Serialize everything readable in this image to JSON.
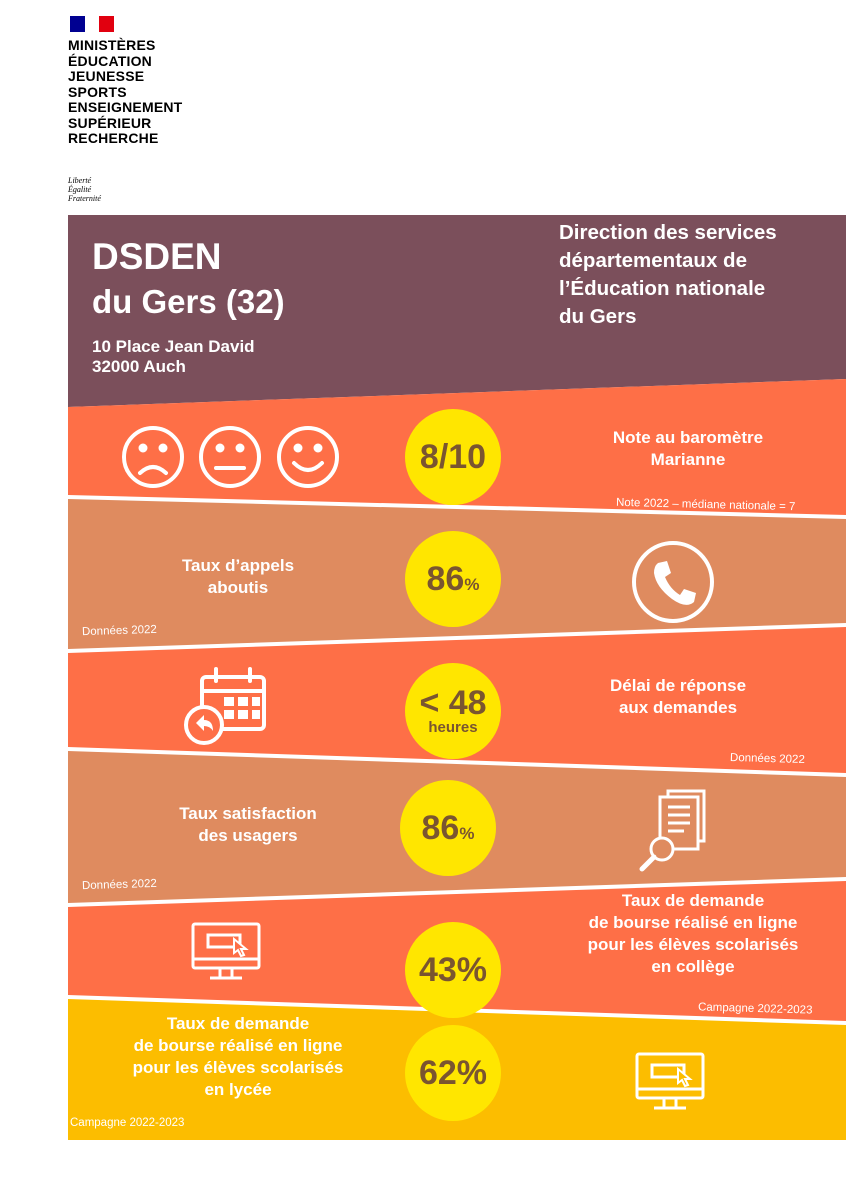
{
  "logo": {
    "ministry_lines": [
      "MINISTÈRES",
      "ÉDUCATION",
      "JEUNESSE",
      "SPORTS",
      "ENSEIGNEMENT",
      "SUPÉRIEUR",
      "RECHERCHE"
    ],
    "motto_lines": [
      "Liberté",
      "Égalité",
      "Fraternité"
    ],
    "flag_colors": [
      "#000091",
      "#ffffff",
      "#e1000f"
    ]
  },
  "header": {
    "title": "DSDEN",
    "subtitle": "du Gers (32)",
    "address_lines": [
      "10 Place Jean David",
      "32000 Auch"
    ],
    "direction_lines": [
      "Direction des services",
      "départementaux de",
      "l’Éducation nationale",
      "du Gers"
    ]
  },
  "colors": {
    "header": "#7b4f5b",
    "red_band": "#fe6f47",
    "tan_band": "#df8b5f",
    "yellow_band": "#fcbd00",
    "circle": "#ffe600",
    "circle_text": "#7a5530"
  },
  "rows": [
    {
      "value": "8/10",
      "label_lines": [
        "Note au baromètre",
        "Marianne"
      ],
      "note": "Note 2022 – médiane nationale = 7",
      "icons": [
        "sad-face-icon",
        "neutral-face-icon",
        "happy-face-icon"
      ]
    },
    {
      "value": "86",
      "unit": "%",
      "label_lines": [
        "Taux d’appels",
        "aboutis"
      ],
      "note": "Données 2022",
      "icons": [
        "phone-icon"
      ]
    },
    {
      "value": "< 48",
      "unit": "heures",
      "label_lines": [
        "Délai de réponse",
        "aux demandes"
      ],
      "note": "Données 2022",
      "icons": [
        "calendar-reply-icon"
      ]
    },
    {
      "value": "86",
      "unit": "%",
      "label_lines": [
        "Taux satisfaction",
        "des usagers"
      ],
      "note": "Données 2022",
      "icons": [
        "document-search-icon"
      ]
    },
    {
      "value": "43%",
      "label_lines": [
        "Taux de demande",
        "de bourse réalisé en ligne",
        "pour les élèves scolarisés",
        "en collège"
      ],
      "note": "Campagne 2022-2023",
      "icons": [
        "computer-icon"
      ]
    },
    {
      "value": "62%",
      "label_lines": [
        "Taux de demande",
        "de bourse réalisé en ligne",
        "pour les élèves scolarisés",
        "en lycée"
      ],
      "note": "Campagne 2022-2023",
      "icons": [
        "computer-icon"
      ]
    }
  ]
}
